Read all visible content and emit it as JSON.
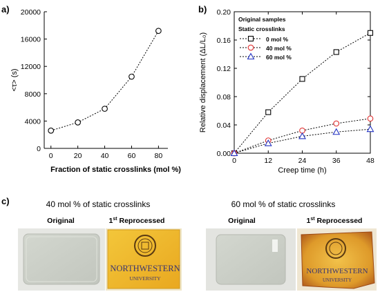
{
  "panels": {
    "a": "a)",
    "b": "b)",
    "c": "c)"
  },
  "chart_data": [
    {
      "type": "line",
      "panel": "a)",
      "xlabel": "Fraction of static crosslinks (mol %)",
      "ylabel": "<τ> (s)",
      "x": [
        0,
        20,
        40,
        60,
        80
      ],
      "xticks": [
        0,
        20,
        40,
        60,
        80
      ],
      "xlim": [
        -5,
        87
      ],
      "ylim": [
        0,
        20000
      ],
      "yticks": [
        0,
        4000,
        8000,
        12000,
        16000,
        20000
      ],
      "series": [
        {
          "values": [
            2600,
            3800,
            5800,
            10500,
            17200
          ],
          "marker": "circle",
          "color": "#000000"
        }
      ],
      "grid": false
    },
    {
      "type": "line",
      "panel": "b)",
      "xlabel": "Creep time (h)",
      "ylabel": "Relative displacement (ΔL/L₀)",
      "x": [
        0,
        12,
        24,
        36,
        48
      ],
      "xticks": [
        0,
        12,
        24,
        36,
        48
      ],
      "xlim": [
        0,
        48
      ],
      "ylim": [
        0,
        0.2
      ],
      "yticks": [
        "0.00",
        "0.04",
        "0.08",
        "0.12",
        "0.16",
        "0.20"
      ],
      "legend_title_1": "Original samples",
      "legend_title_2": "Static crosslinks",
      "legend_position": "top-left",
      "series": [
        {
          "name": "0 mol %",
          "values": [
            0,
            0.058,
            0.105,
            0.143,
            0.17
          ],
          "marker": "square",
          "color": "#000000"
        },
        {
          "name": "40 mol %",
          "values": [
            0,
            0.018,
            0.032,
            0.042,
            0.049
          ],
          "marker": "circle",
          "color": "#e03030"
        },
        {
          "name": "60 mol %",
          "values": [
            0,
            0.014,
            0.024,
            0.03,
            0.034
          ],
          "marker": "triangle",
          "color": "#2030c0"
        }
      ],
      "grid": false
    }
  ],
  "photos": {
    "left_caption": "40 mol % of static crosslinks",
    "right_caption": "60 mol % of static crosslinks",
    "original_label": "Original",
    "reprocessed_label_num": "1",
    "reprocessed_label_sup": "st",
    "reprocessed_label_rest": " Reprocessed",
    "logo_line1": "NORTHWESTERN",
    "logo_line2": "UNIVERSITY"
  }
}
